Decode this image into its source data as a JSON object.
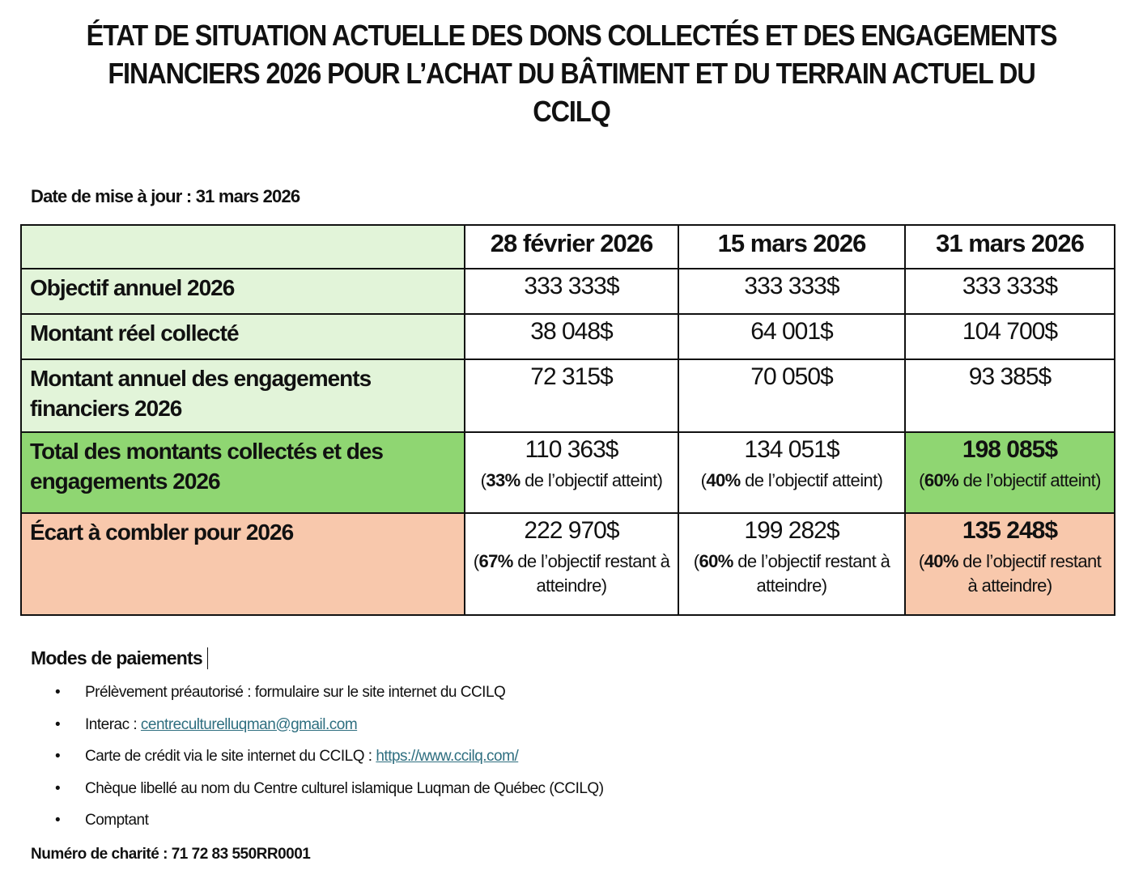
{
  "title": "ÉTAT DE SITUATION ACTUELLE DES DONS COLLECTÉS ET DES ENGAGEMENTS FINANCIERS 2026 POUR L’ACHAT DU BÂTIMENT ET DU TERRAIN ACTUEL DU CCILQ",
  "update_date": "Date de mise à jour : 31 mars 2026",
  "table": {
    "headers": [
      "",
      "28 février 2026",
      "15 mars 2026",
      "31 mars 2026"
    ],
    "rows": [
      {
        "label": "Objectif annuel 2026",
        "cells": [
          {
            "value": "333 333$"
          },
          {
            "value": "333 333$"
          },
          {
            "value": "333 333$"
          }
        ]
      },
      {
        "label": "Montant réel collecté",
        "cells": [
          {
            "value": "38 048$"
          },
          {
            "value": "64 001$"
          },
          {
            "value": "104 700$"
          }
        ]
      },
      {
        "label": "Montant annuel des engagements financiers 2026",
        "cells": [
          {
            "value": "72 315$"
          },
          {
            "value": "70 050$"
          },
          {
            "value": "93 385$"
          }
        ]
      },
      {
        "label": "Total des montants collectés et des engagements 2026",
        "cells": [
          {
            "value": "110 363$",
            "open": "(",
            "pct": "33%",
            "note": " de l’objectif atteint)"
          },
          {
            "value": "134 051$",
            "open": "(",
            "pct": "40%",
            "note": " de l’objectif atteint)"
          },
          {
            "value": "198 085$",
            "open": "(",
            "pct": "60%",
            "note": " de l’objectif atteint)"
          }
        ]
      },
      {
        "label": "Écart à combler pour 2026",
        "cells": [
          {
            "value": "222 970$",
            "open": "(",
            "pct": "67%",
            "note": " de l’objectif restant à atteindre)"
          },
          {
            "value": "199 282$",
            "open": "(",
            "pct": "60%",
            "note": " de l’objectif restant à atteindre)"
          },
          {
            "value": "135 248$",
            "open": "(",
            "pct": "40%",
            "note": " de l’objectif restant à atteindre)"
          }
        ]
      }
    ],
    "colors": {
      "label_bg": "#e2f4d9",
      "total_bg": "#8fd672",
      "gap_bg": "#f8c8ac"
    }
  },
  "payments": {
    "heading": "Modes de paiements",
    "items": [
      {
        "text": "Prélèvement préautorisé : formulaire sur le site internet du CCILQ"
      },
      {
        "text": "Interac : ",
        "link": "centreculturelluqman@gmail.com"
      },
      {
        "text": "Carte de crédit via le site internet du CCILQ : ",
        "link": "https://www.ccilq.com/"
      },
      {
        "text": "Chèque libellé au nom du Centre culturel islamique Luqman de Québec (CCILQ)"
      },
      {
        "text": "Comptant"
      }
    ]
  },
  "charity_number": "Numéro de charité : 71 72 83 550RR0001"
}
